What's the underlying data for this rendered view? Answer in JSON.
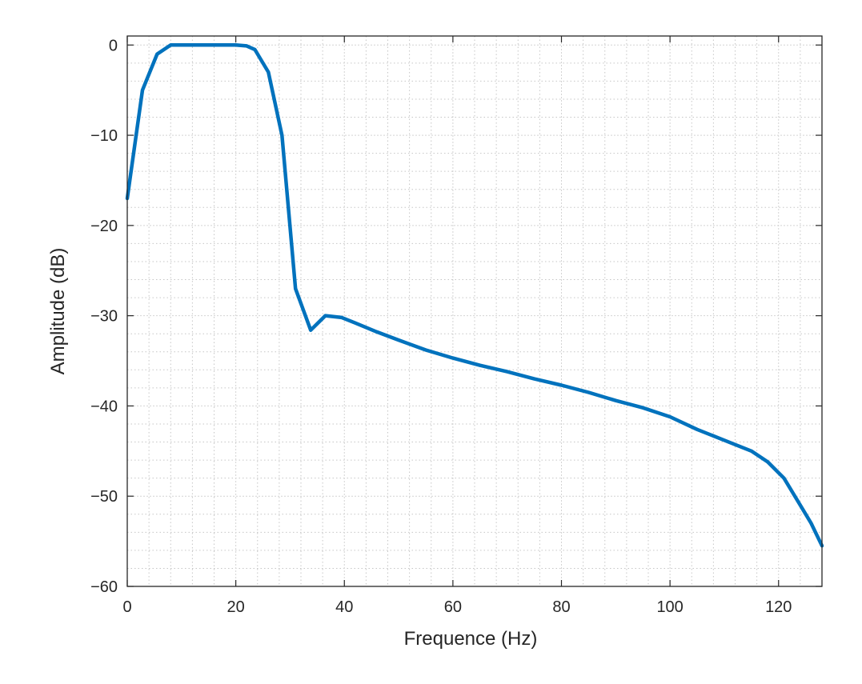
{
  "chart_data": {
    "type": "line",
    "title": "",
    "xlabel": "Frequence (Hz)",
    "ylabel": "Amplitude (dB)",
    "xlim": [
      0,
      128
    ],
    "ylim": [
      -60,
      1
    ],
    "xticks": [
      0,
      20,
      40,
      60,
      80,
      100,
      120
    ],
    "yticks": [
      0,
      -10,
      -20,
      -30,
      -40,
      -50,
      -60
    ],
    "x_tick_labels": [
      "0",
      "20",
      "40",
      "60",
      "80",
      "100",
      "120"
    ],
    "y_tick_labels": [
      "0",
      "−10",
      "−20",
      "−30",
      "−40",
      "−50",
      "−60"
    ],
    "grid": true,
    "minor_grid": true,
    "legend": "none",
    "series": [
      {
        "color": "#0072BD",
        "x": [
          0,
          2.8,
          5.5,
          8,
          12,
          16,
          20,
          22,
          23.5,
          26,
          28.5,
          31,
          33.8,
          36.5,
          39.5,
          42,
          46,
          50,
          55,
          60,
          65,
          70,
          75,
          80,
          85,
          90,
          95,
          100,
          105,
          110,
          115,
          118,
          121,
          124,
          126,
          128
        ],
        "y": [
          -17,
          -5,
          -1,
          0,
          0,
          0,
          0,
          -0.1,
          -0.5,
          -3,
          -10,
          -27,
          -31.6,
          -30,
          -30.2,
          -30.8,
          -31.8,
          -32.7,
          -33.8,
          -34.7,
          -35.5,
          -36.2,
          -37,
          -37.7,
          -38.5,
          -39.4,
          -40.2,
          -41.2,
          -42.6,
          -43.8,
          -45,
          -46.2,
          -48,
          -51,
          -53,
          -55.5
        ]
      }
    ]
  }
}
